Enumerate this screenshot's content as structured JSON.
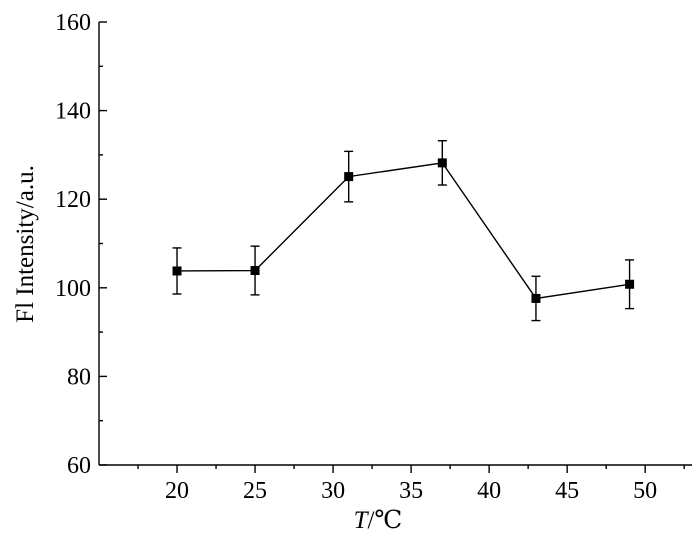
{
  "chart_data": {
    "type": "line",
    "x": [
      20,
      25,
      31,
      37,
      43,
      49
    ],
    "series": [
      {
        "values": [
          103.8,
          103.9,
          125.1,
          128.2,
          97.6,
          100.8
        ],
        "error": [
          5.2,
          5.5,
          5.7,
          5.0,
          5.0,
          5.5
        ],
        "marker": "square",
        "color": "#000000"
      }
    ],
    "xlabel_italic": "T",
    "xlabel_unit": "/℃",
    "ylabel": "Fl Intensity/a.u.",
    "xlim": [
      15,
      53
    ],
    "ylim": [
      60,
      160
    ],
    "xticks": [
      20,
      25,
      30,
      35,
      40,
      45,
      50
    ],
    "yticks": [
      60,
      80,
      100,
      120,
      140,
      160
    ],
    "x_minor_step": 2.5,
    "y_minor_step": 10,
    "grid": false,
    "legend": "none"
  }
}
